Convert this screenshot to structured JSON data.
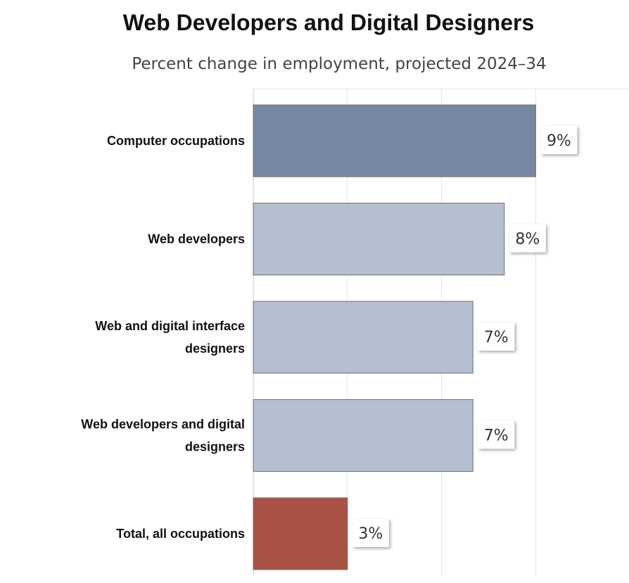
{
  "chart_data": {
    "type": "bar",
    "orientation": "horizontal",
    "title": "Web Developers and Digital Designers",
    "subtitle": "Percent change in employment, projected 2024–34",
    "categories": [
      [
        "Computer occupations"
      ],
      [
        "Web developers"
      ],
      [
        "Web and digital interface",
        "designers"
      ],
      [
        "Web developers and digital",
        "designers"
      ],
      [
        "Total, all occupations"
      ]
    ],
    "values": [
      9,
      8,
      7,
      7,
      3
    ],
    "value_labels": [
      "9%",
      "8%",
      "7%",
      "7%",
      "3%"
    ],
    "colors": [
      "#7888a3",
      "#b4bfcf",
      "#b4bfcf",
      "#b4bfcf",
      "#a85246"
    ],
    "xlim": [
      0,
      12
    ],
    "grid": true,
    "legend": "none"
  }
}
